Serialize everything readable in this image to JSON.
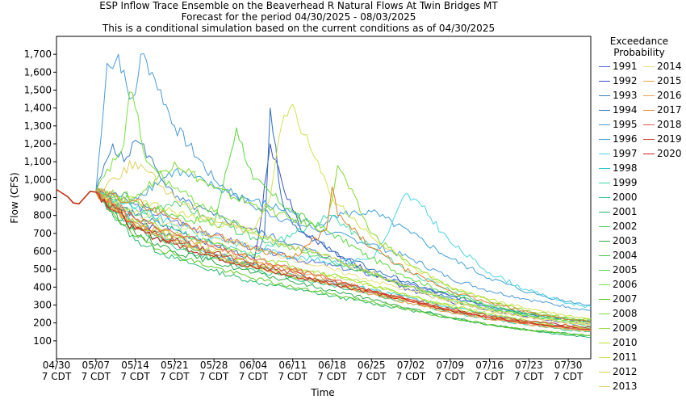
{
  "chart_data": {
    "type": "line",
    "title": "ESP Inflow Trace Ensemble on the Beaverhead R Natural Flows At Twin Bridges MT",
    "subtitle": "Forecast for the period 04/30/2025 - 08/03/2025",
    "subtitle2": "This is a conditional simulation based on the current conditions as of 04/30/2025",
    "xlabel": "Time",
    "ylabel": "Flow (CFS)",
    "ylim": [
      0,
      1800
    ],
    "xlim_days": [
      0,
      95
    ],
    "grid": true,
    "legend_title": "Exceedance Probability",
    "legend_placement": "right",
    "y_ticks": [
      100,
      200,
      300,
      400,
      500,
      600,
      700,
      800,
      900,
      1000,
      1100,
      1200,
      1300,
      1400,
      1500,
      1600,
      1700
    ],
    "y_tick_labels": [
      "100",
      "200",
      "300",
      "400",
      "500",
      "600",
      "700",
      "800",
      "900",
      "1,000",
      "1,100",
      "1,200",
      "1,300",
      "1,400",
      "1,500",
      "1,600",
      "1,700"
    ],
    "x_ticks": [
      {
        "day": 0,
        "line1": "04/30",
        "line2": "7 CDT"
      },
      {
        "day": 7,
        "line1": "05/07",
        "line2": "7 CDT"
      },
      {
        "day": 14,
        "line1": "05/14",
        "line2": "7 CDT"
      },
      {
        "day": 21,
        "line1": "05/21",
        "line2": "7 CDT"
      },
      {
        "day": 28,
        "line1": "05/28",
        "line2": "7 CDT"
      },
      {
        "day": 35,
        "line1": "06/04",
        "line2": "7 CDT"
      },
      {
        "day": 42,
        "line1": "06/11",
        "line2": "7 CDT"
      },
      {
        "day": 49,
        "line1": "06/18",
        "line2": "7 CDT"
      },
      {
        "day": 56,
        "line1": "06/25",
        "line2": "7 CDT"
      },
      {
        "day": 63,
        "line1": "07/02",
        "line2": "7 CDT"
      },
      {
        "day": 70,
        "line1": "07/09",
        "line2": "7 CDT"
      },
      {
        "day": 77,
        "line1": "07/16",
        "line2": "7 CDT"
      },
      {
        "day": 84,
        "line1": "07/23",
        "line2": "7 CDT"
      },
      {
        "day": 91,
        "line1": "07/30",
        "line2": "7 CDT"
      }
    ],
    "observed": {
      "x": [
        0,
        1,
        2,
        3,
        4,
        5,
        6,
        7
      ],
      "values": [
        945,
        925,
        905,
        870,
        865,
        900,
        935,
        930
      ]
    },
    "series": [
      {
        "name": "1991",
        "color": "#5b6bdc",
        "x": [
          7,
          14,
          21,
          28,
          35,
          42,
          49,
          56,
          63,
          70,
          77,
          84,
          91,
          95
        ],
        "values": [
          930,
          860,
          770,
          690,
          620,
          560,
          520,
          470,
          410,
          350,
          300,
          250,
          220,
          210
        ]
      },
      {
        "name": "1992",
        "color": "#3d4fc4",
        "x": [
          7,
          14,
          21,
          28,
          35,
          36,
          38,
          40,
          42,
          44,
          49,
          56,
          63,
          70,
          77,
          84,
          91,
          95
        ],
        "values": [
          930,
          780,
          680,
          590,
          520,
          700,
          1200,
          1000,
          830,
          700,
          600,
          480,
          380,
          320,
          270,
          230,
          200,
          190
        ]
      },
      {
        "name": "1993",
        "color": "#3b7dc4",
        "x": [
          7,
          10,
          12,
          14,
          15,
          18,
          21,
          28,
          35,
          42,
          49,
          56,
          63,
          70,
          77,
          84,
          91,
          95
        ],
        "values": [
          930,
          1200,
          1100,
          1220,
          1200,
          1050,
          900,
          800,
          720,
          640,
          560,
          480,
          400,
          340,
          290,
          250,
          220,
          205
        ]
      },
      {
        "name": "1994",
        "color": "#2f6fb8",
        "x": [
          7,
          14,
          21,
          28,
          35,
          37,
          38,
          40,
          42,
          49,
          56,
          63,
          70,
          77,
          84,
          91,
          95
        ],
        "values": [
          930,
          800,
          720,
          640,
          560,
          700,
          1400,
          900,
          750,
          600,
          500,
          420,
          350,
          300,
          250,
          220,
          205
        ]
      },
      {
        "name": "1995",
        "color": "#4a9ad8",
        "x": [
          7,
          9,
          10,
          11,
          13,
          14,
          15,
          17,
          21,
          28,
          35,
          42,
          49,
          56,
          63,
          70,
          77,
          84,
          91,
          95
        ],
        "values": [
          930,
          1650,
          1620,
          1700,
          1450,
          1480,
          1700,
          1600,
          1300,
          1000,
          850,
          760,
          700,
          640,
          560,
          450,
          380,
          330,
          290,
          270
        ]
      },
      {
        "name": "1996",
        "color": "#3aa0d8",
        "x": [
          7,
          14,
          21,
          28,
          35,
          42,
          46,
          49,
          56,
          63,
          70,
          77,
          84,
          91,
          95
        ],
        "values": [
          930,
          900,
          1050,
          960,
          880,
          820,
          730,
          800,
          820,
          700,
          560,
          450,
          370,
          320,
          300
        ]
      },
      {
        "name": "1997",
        "color": "#4dd4e0",
        "x": [
          7,
          14,
          21,
          28,
          35,
          42,
          49,
          56,
          59,
          62,
          65,
          70,
          77,
          84,
          91,
          95
        ],
        "values": [
          930,
          840,
          750,
          680,
          620,
          570,
          540,
          560,
          700,
          920,
          850,
          650,
          480,
          380,
          310,
          290
        ]
      },
      {
        "name": "1998",
        "color": "#28c8c8",
        "x": [
          7,
          14,
          21,
          28,
          35,
          42,
          49,
          56,
          63,
          70,
          77,
          84,
          91,
          95
        ],
        "values": [
          930,
          760,
          660,
          580,
          520,
          470,
          430,
          390,
          340,
          290,
          250,
          210,
          180,
          170
        ]
      },
      {
        "name": "1999",
        "color": "#40d8b0",
        "x": [
          7,
          14,
          21,
          28,
          35,
          42,
          49,
          56,
          63,
          70,
          77,
          84,
          91,
          95
        ],
        "values": [
          930,
          840,
          720,
          640,
          580,
          700,
          800,
          620,
          480,
          380,
          300,
          240,
          200,
          185
        ]
      },
      {
        "name": "2000",
        "color": "#30c890",
        "x": [
          7,
          14,
          21,
          28,
          35,
          42,
          49,
          56,
          63,
          70,
          77,
          84,
          91,
          95
        ],
        "values": [
          930,
          720,
          620,
          560,
          500,
          450,
          410,
          360,
          310,
          260,
          220,
          190,
          160,
          150
        ]
      },
      {
        "name": "2001",
        "color": "#26b870",
        "x": [
          7,
          14,
          21,
          28,
          35,
          42,
          49,
          56,
          63,
          70,
          77,
          84,
          91,
          95
        ],
        "values": [
          930,
          660,
          560,
          490,
          430,
          390,
          350,
          310,
          270,
          230,
          190,
          160,
          130,
          120
        ]
      },
      {
        "name": "2002",
        "color": "#50d070",
        "x": [
          7,
          14,
          21,
          28,
          35,
          42,
          49,
          56,
          63,
          70,
          77,
          84,
          91,
          95
        ],
        "values": [
          930,
          800,
          880,
          760,
          680,
          620,
          540,
          470,
          400,
          330,
          280,
          240,
          210,
          200
        ]
      },
      {
        "name": "2003",
        "color": "#2ea84a",
        "x": [
          7,
          14,
          21,
          28,
          35,
          42,
          49,
          56,
          63,
          70,
          77,
          84,
          91,
          95
        ],
        "values": [
          930,
          700,
          600,
          540,
          480,
          430,
          380,
          330,
          280,
          230,
          190,
          160,
          140,
          130
        ]
      },
      {
        "name": "2004",
        "color": "#44c044",
        "x": [
          7,
          14,
          21,
          28,
          35,
          42,
          49,
          56,
          63,
          70,
          77,
          84,
          91,
          95
        ],
        "values": [
          930,
          730,
          640,
          570,
          510,
          460,
          420,
          370,
          320,
          270,
          230,
          200,
          170,
          160
        ]
      },
      {
        "name": "2005",
        "color": "#5ad840",
        "x": [
          7,
          14,
          21,
          28,
          32,
          35,
          42,
          49,
          56,
          63,
          70,
          77,
          84,
          91,
          95
        ],
        "values": [
          930,
          880,
          800,
          750,
          1290,
          1000,
          820,
          700,
          560,
          450,
          360,
          300,
          250,
          220,
          210
        ]
      },
      {
        "name": "2006",
        "color": "#7ae040",
        "x": [
          7,
          12,
          13,
          14,
          16,
          21,
          28,
          35,
          42,
          49,
          56,
          63,
          70,
          77,
          84,
          91,
          95
        ],
        "values": [
          930,
          1200,
          1490,
          1400,
          1100,
          950,
          820,
          700,
          620,
          560,
          480,
          400,
          330,
          280,
          240,
          210,
          200
        ]
      },
      {
        "name": "2007",
        "color": "#5cc820",
        "x": [
          7,
          14,
          21,
          28,
          35,
          42,
          49,
          56,
          63,
          70,
          77,
          84,
          91,
          95
        ],
        "values": [
          930,
          680,
          580,
          510,
          450,
          400,
          360,
          320,
          270,
          230,
          190,
          160,
          140,
          130
        ]
      },
      {
        "name": "2008",
        "color": "#80d830",
        "x": [
          7,
          14,
          21,
          28,
          35,
          42,
          48,
          50,
          56,
          63,
          70,
          77,
          84,
          91,
          95
        ],
        "values": [
          930,
          900,
          1100,
          950,
          860,
          780,
          720,
          1080,
          700,
          520,
          400,
          320,
          270,
          230,
          220
        ]
      },
      {
        "name": "2009",
        "color": "#a0e040",
        "x": [
          7,
          14,
          21,
          28,
          35,
          42,
          49,
          56,
          63,
          70,
          77,
          84,
          91,
          95
        ],
        "values": [
          930,
          780,
          700,
          640,
          580,
          520,
          470,
          410,
          350,
          290,
          240,
          200,
          175,
          165
        ]
      },
      {
        "name": "2010",
        "color": "#b8e030",
        "x": [
          7,
          14,
          21,
          28,
          35,
          42,
          49,
          56,
          63,
          70,
          77,
          84,
          91,
          95
        ],
        "values": [
          930,
          760,
          680,
          600,
          540,
          500,
          460,
          410,
          350,
          300,
          250,
          210,
          180,
          170
        ]
      },
      {
        "name": "2011",
        "color": "#d4e050",
        "x": [
          7,
          14,
          21,
          28,
          35,
          38,
          40,
          42,
          44,
          49,
          56,
          63,
          70,
          77,
          84,
          91,
          95
        ],
        "values": [
          930,
          880,
          820,
          760,
          720,
          900,
          1300,
          1420,
          1250,
          900,
          680,
          520,
          400,
          330,
          280,
          240,
          225
        ]
      },
      {
        "name": "2012",
        "color": "#d8d040",
        "x": [
          7,
          14,
          21,
          28,
          35,
          42,
          49,
          56,
          63,
          70,
          77,
          84,
          91,
          95
        ],
        "values": [
          930,
          750,
          660,
          580,
          510,
          460,
          420,
          370,
          320,
          270,
          230,
          200,
          175,
          165
        ]
      },
      {
        "name": "2013",
        "color": "#e0d060",
        "x": [
          7,
          14,
          21,
          28,
          35,
          42,
          49,
          56,
          63,
          70,
          77,
          84,
          91,
          95
        ],
        "values": [
          930,
          1100,
          900,
          780,
          700,
          630,
          560,
          480,
          400,
          330,
          270,
          230,
          200,
          190
        ]
      },
      {
        "name": "2014",
        "color": "#e8e080",
        "x": [
          7,
          14,
          21,
          28,
          35,
          42,
          49,
          56,
          63,
          70,
          77,
          84,
          91,
          95
        ],
        "values": [
          930,
          820,
          740,
          680,
          620,
          560,
          500,
          440,
          380,
          320,
          270,
          230,
          200,
          190
        ]
      },
      {
        "name": "2015",
        "color": "#e8a040",
        "x": [
          7,
          14,
          21,
          28,
          35,
          42,
          49,
          56,
          63,
          70,
          77,
          84,
          91,
          95
        ],
        "values": [
          930,
          760,
          690,
          620,
          550,
          490,
          440,
          380,
          320,
          270,
          230,
          200,
          170,
          160
        ]
      },
      {
        "name": "2016",
        "color": "#f0a050",
        "x": [
          7,
          14,
          21,
          28,
          35,
          42,
          49,
          56,
          63,
          70,
          77,
          84,
          91,
          95
        ],
        "values": [
          930,
          740,
          660,
          580,
          520,
          470,
          420,
          360,
          310,
          260,
          220,
          190,
          165,
          155
        ]
      },
      {
        "name": "2017",
        "color": "#e08030",
        "x": [
          7,
          14,
          21,
          28,
          35,
          42,
          48,
          49,
          50,
          56,
          63,
          70,
          77,
          84,
          91,
          95
        ],
        "values": [
          930,
          880,
          780,
          690,
          620,
          560,
          720,
          960,
          800,
          620,
          480,
          380,
          310,
          260,
          220,
          210
        ]
      },
      {
        "name": "2018",
        "color": "#e06050",
        "x": [
          7,
          14,
          21,
          28,
          35,
          42,
          49,
          56,
          63,
          70,
          77,
          84,
          91,
          95
        ],
        "values": [
          930,
          780,
          700,
          630,
          560,
          500,
          440,
          380,
          320,
          270,
          230,
          200,
          170,
          160
        ]
      },
      {
        "name": "2019",
        "color": "#c84030",
        "x": [
          7,
          14,
          21,
          28,
          35,
          42,
          49,
          56,
          63,
          70,
          77,
          84,
          91,
          95
        ],
        "values": [
          930,
          740,
          660,
          590,
          530,
          480,
          430,
          380,
          330,
          280,
          240,
          210,
          185,
          175
        ]
      },
      {
        "name": "2020",
        "color": "#d02020",
        "x": [
          7,
          14,
          21,
          28,
          35,
          42,
          49,
          56,
          63,
          70,
          77,
          84,
          91,
          95
        ],
        "values": [
          930,
          720,
          640,
          570,
          510,
          460,
          420,
          370,
          320,
          270,
          230,
          200,
          175,
          165
        ]
      }
    ]
  }
}
